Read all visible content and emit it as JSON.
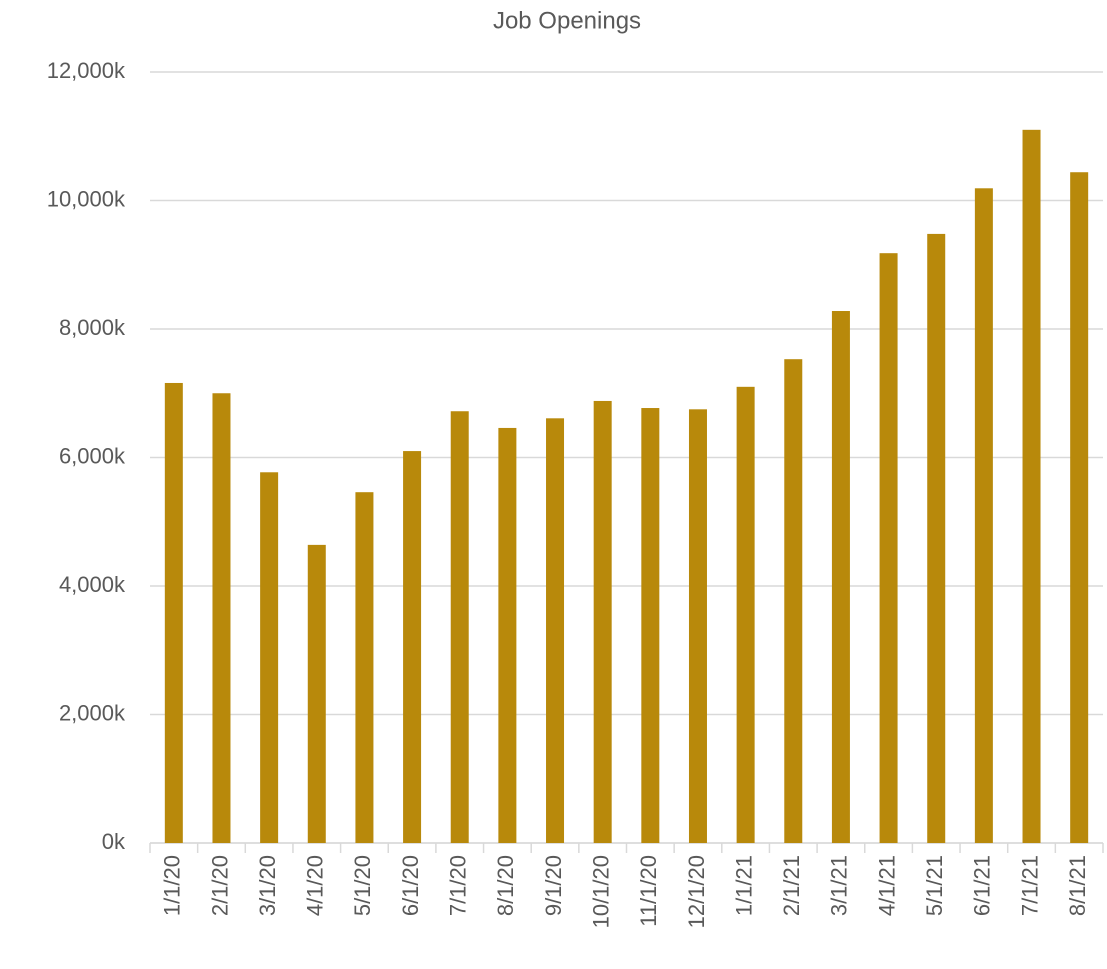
{
  "chart_data": {
    "type": "bar",
    "title": "Job Openings",
    "categories": [
      "1/1/20",
      "2/1/20",
      "3/1/20",
      "4/1/20",
      "5/1/20",
      "6/1/20",
      "7/1/20",
      "8/1/20",
      "9/1/20",
      "10/1/20",
      "11/1/20",
      "12/1/20",
      "1/1/21",
      "2/1/21",
      "3/1/21",
      "4/1/21",
      "5/1/21",
      "6/1/21",
      "7/1/21",
      "8/1/21"
    ],
    "values": [
      7160,
      7000,
      5770,
      4640,
      5460,
      6100,
      6720,
      6460,
      6610,
      6880,
      6770,
      6750,
      7100,
      7530,
      8280,
      9180,
      9480,
      10190,
      11100,
      10440
    ],
    "color": "#b8890b",
    "ylim": [
      0,
      12000
    ],
    "yticks": [
      {
        "value": 0,
        "label": "0k"
      },
      {
        "value": 2000,
        "label": "2,000k"
      },
      {
        "value": 4000,
        "label": "4,000k"
      },
      {
        "value": 6000,
        "label": "6,000k"
      },
      {
        "value": 8000,
        "label": "8,000k"
      },
      {
        "value": 10000,
        "label": "10,000k"
      },
      {
        "value": 12000,
        "label": "12,000k"
      }
    ],
    "grid": true
  }
}
